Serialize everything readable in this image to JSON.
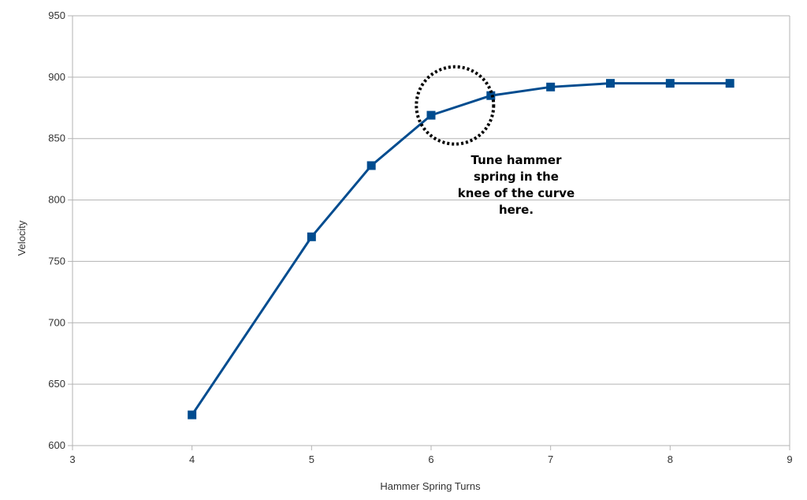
{
  "chart_data": {
    "type": "line",
    "title": "",
    "xlabel": "Hammer Spring Turns",
    "ylabel": "Velocity",
    "xlim": [
      3,
      9
    ],
    "ylim": [
      600,
      950
    ],
    "xticks": [
      "3",
      "4",
      "5",
      "6",
      "7",
      "8",
      "9"
    ],
    "yticks": [
      "600",
      "650",
      "700",
      "750",
      "800",
      "850",
      "900",
      "950"
    ],
    "grid": "horizontal",
    "legend": "none",
    "series": [
      {
        "color": "#004C8F",
        "marker": "square",
        "points": [
          {
            "x": 4,
            "y": 625
          },
          {
            "x": 5,
            "y": 770
          },
          {
            "x": 5.5,
            "y": 828
          },
          {
            "x": 6,
            "y": 869
          },
          {
            "x": 6.5,
            "y": 885
          },
          {
            "x": 7,
            "y": 892
          },
          {
            "x": 7.5,
            "y": 895
          },
          {
            "x": 8,
            "y": 895
          },
          {
            "x": 8.5,
            "y": 895
          }
        ]
      }
    ],
    "annotation": {
      "lines": [
        "Tune hammer",
        "spring in the",
        "knee of the curve",
        "here."
      ],
      "circle_center": {
        "x": 6.2,
        "y": 877
      }
    }
  },
  "colors": {
    "series": "#004C8F",
    "grid": "#B3B3B3",
    "axis_text": "#333333",
    "annotation": "#000000"
  }
}
